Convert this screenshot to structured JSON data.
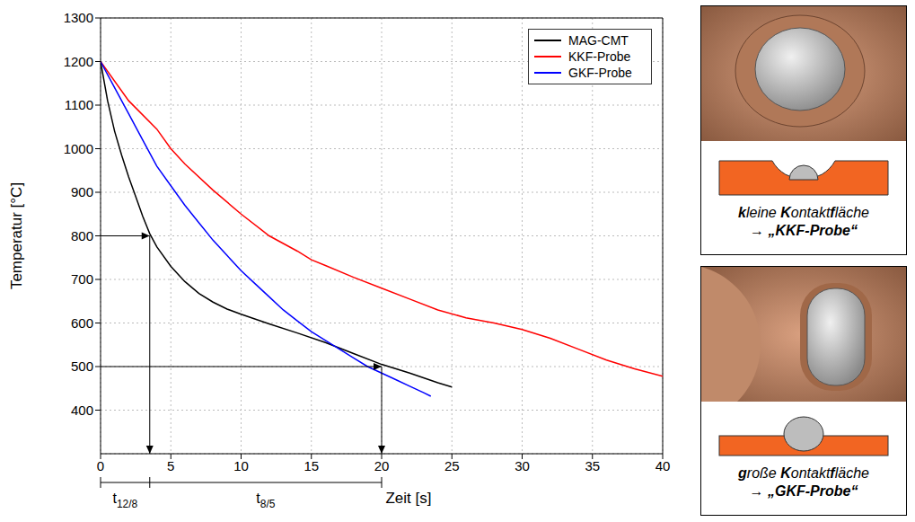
{
  "chart_data": {
    "type": "line",
    "x_label": "Zeit [s]",
    "y_label": "Temperatur [°C]",
    "xlim": [
      0,
      40
    ],
    "ylim": [
      300,
      1300
    ],
    "xticks": [
      0,
      5,
      10,
      15,
      20,
      25,
      30,
      35,
      40
    ],
    "yticks": [
      400,
      500,
      600,
      700,
      800,
      900,
      1000,
      1100,
      1200,
      1300
    ],
    "grid": true,
    "legend": "upper right",
    "series": [
      {
        "name": "MAG-CMT",
        "color": "#000000",
        "x": [
          0,
          0.5,
          1,
          1.5,
          2,
          2.5,
          3,
          3.5,
          4,
          5,
          6,
          7,
          8,
          9,
          10,
          12,
          14,
          16,
          18,
          20,
          22,
          24,
          25
        ],
        "values": [
          1200,
          1110,
          1040,
          985,
          935,
          890,
          845,
          805,
          775,
          730,
          695,
          668,
          648,
          632,
          620,
          598,
          577,
          555,
          530,
          505,
          485,
          463,
          453
        ]
      },
      {
        "name": "KKF-Probe",
        "color": "#ff0000",
        "x": [
          0,
          2,
          4,
          5,
          6,
          8,
          10,
          12,
          14,
          15,
          16,
          18,
          20,
          22,
          24,
          26,
          28,
          30,
          32,
          34,
          36,
          38,
          40
        ],
        "values": [
          1200,
          1110,
          1045,
          1000,
          965,
          905,
          850,
          800,
          765,
          745,
          732,
          705,
          680,
          655,
          630,
          612,
          600,
          585,
          565,
          540,
          515,
          495,
          478
        ]
      },
      {
        "name": "GKF-Probe",
        "color": "#0000ff",
        "x": [
          0,
          1,
          2,
          3,
          4,
          5,
          6,
          7,
          8,
          9,
          10,
          11,
          12,
          13,
          14,
          15,
          16,
          17,
          18,
          19,
          20,
          21,
          22,
          23,
          23.5
        ],
        "values": [
          1200,
          1140,
          1080,
          1020,
          960,
          915,
          870,
          830,
          790,
          755,
          720,
          690,
          660,
          630,
          605,
          580,
          560,
          540,
          520,
          500,
          485,
          470,
          455,
          440,
          432
        ]
      }
    ],
    "markers": [
      {
        "x": 3.5,
        "y": 800
      },
      {
        "x": 20,
        "y": 500
      }
    ],
    "intervals": [
      {
        "text": "t",
        "subscript": "12/8",
        "from": 0,
        "to": 3.5
      },
      {
        "text": "t",
        "subscript": "8/5",
        "from": 3.5,
        "to": 20
      }
    ]
  },
  "panels": [
    {
      "caption_segments": [
        {
          "text": "k",
          "bold": true
        },
        {
          "text": "leine ",
          "bold": false
        },
        {
          "text": "K",
          "bold": true
        },
        {
          "text": "ontakt",
          "bold": false
        },
        {
          "text": "f",
          "bold": true
        },
        {
          "text": "läche",
          "bold": false
        }
      ],
      "name": "→ „KKF-Probe“"
    },
    {
      "caption_segments": [
        {
          "text": "g",
          "bold": true
        },
        {
          "text": "roße ",
          "bold": false
        },
        {
          "text": "K",
          "bold": true
        },
        {
          "text": "ontakt",
          "bold": false
        },
        {
          "text": "f",
          "bold": true
        },
        {
          "text": "läche",
          "bold": false
        }
      ],
      "name": "→ „GKF-Probe“"
    }
  ]
}
